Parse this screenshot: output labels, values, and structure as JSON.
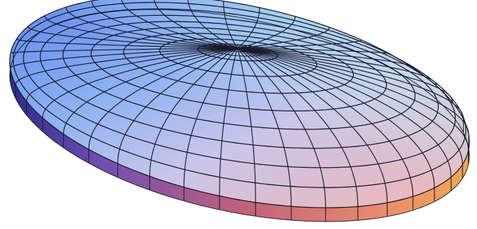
{
  "figure": {
    "description_visible_text": "",
    "object": "flattened-ellipsoid-disk",
    "mesh": {
      "radial_rings": 9,
      "angular_segments": 40,
      "rim_layers": 1
    },
    "colors": {
      "background": "#ffffff",
      "top_back_left": "#5f8ff0",
      "top_back_right": "#b8ecf4",
      "top_front_left": "#8f8fe6",
      "top_front_right": "#f0b8b8",
      "rim_left": "#3a2f9e",
      "rim_front": "#b04a6a",
      "rim_right": "#e89a5a",
      "rim_bottom": "#7a1010",
      "grid": "#1a1a2a"
    }
  }
}
